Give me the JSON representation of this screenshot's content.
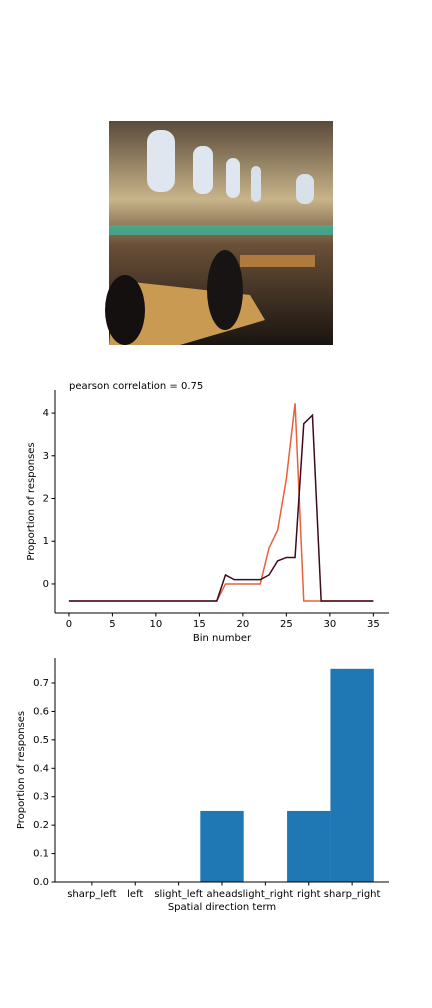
{
  "chart_data": [
    {
      "type": "line",
      "title": "pearson correlation = 0.75",
      "x_label": "Bin number",
      "y_label": "Proportion of responses",
      "x": [
        0,
        1,
        2,
        3,
        4,
        5,
        6,
        7,
        8,
        9,
        10,
        11,
        12,
        13,
        14,
        15,
        16,
        17,
        18,
        19,
        20,
        21,
        22,
        23,
        24,
        25,
        26,
        27,
        28,
        29,
        30,
        31,
        32,
        33,
        34,
        35
      ],
      "series": [
        {
          "color": "#e8603c",
          "values": [
            -0.4,
            -0.4,
            -0.4,
            -0.4,
            -0.4,
            -0.4,
            -0.4,
            -0.4,
            -0.4,
            -0.4,
            -0.4,
            -0.4,
            -0.4,
            -0.4,
            -0.4,
            -0.4,
            -0.4,
            -0.4,
            0,
            0,
            0,
            0,
            0,
            0.84,
            1.26,
            2.46,
            4.23,
            -0.4,
            -0.4,
            -0.4,
            -0.4,
            -0.4,
            -0.4,
            -0.4,
            -0.4,
            -0.4
          ]
        },
        {
          "color": "#3d0a1e",
          "values": [
            -0.4,
            -0.4,
            -0.4,
            -0.4,
            -0.4,
            -0.4,
            -0.4,
            -0.4,
            -0.4,
            -0.4,
            -0.4,
            -0.4,
            -0.4,
            -0.4,
            -0.4,
            -0.4,
            -0.4,
            -0.4,
            0.21,
            0.1,
            0.1,
            0.1,
            0.1,
            0.21,
            0.54,
            0.62,
            0.62,
            3.75,
            3.95,
            -0.4,
            -0.4,
            -0.4,
            -0.4,
            -0.4,
            -0.4,
            -0.4
          ]
        }
      ],
      "xlim": [
        -1.6,
        36.8
      ],
      "xticks": [
        0,
        5,
        10,
        15,
        20,
        25,
        30,
        35
      ],
      "ylim": [
        -0.68,
        4.54
      ],
      "yticks": [
        0,
        1,
        2,
        3,
        4
      ]
    },
    {
      "type": "bar",
      "x_label": "Spatial direction term",
      "y_label": "Proportion of responses",
      "categories": [
        "sharp_left",
        "left",
        "slight_left",
        "ahead",
        "slight_right",
        "right",
        "sharp_right"
      ],
      "values": [
        0,
        0,
        0,
        0.25,
        0,
        0.25,
        0.75
      ],
      "color": "#1f77b4",
      "ylim": [
        0,
        0.788
      ],
      "yticks": [
        {
          "value": 0,
          "label": "0.0"
        },
        0.1,
        0.2,
        0.3,
        0.4,
        0.5,
        0.6,
        0.7
      ]
    }
  ]
}
